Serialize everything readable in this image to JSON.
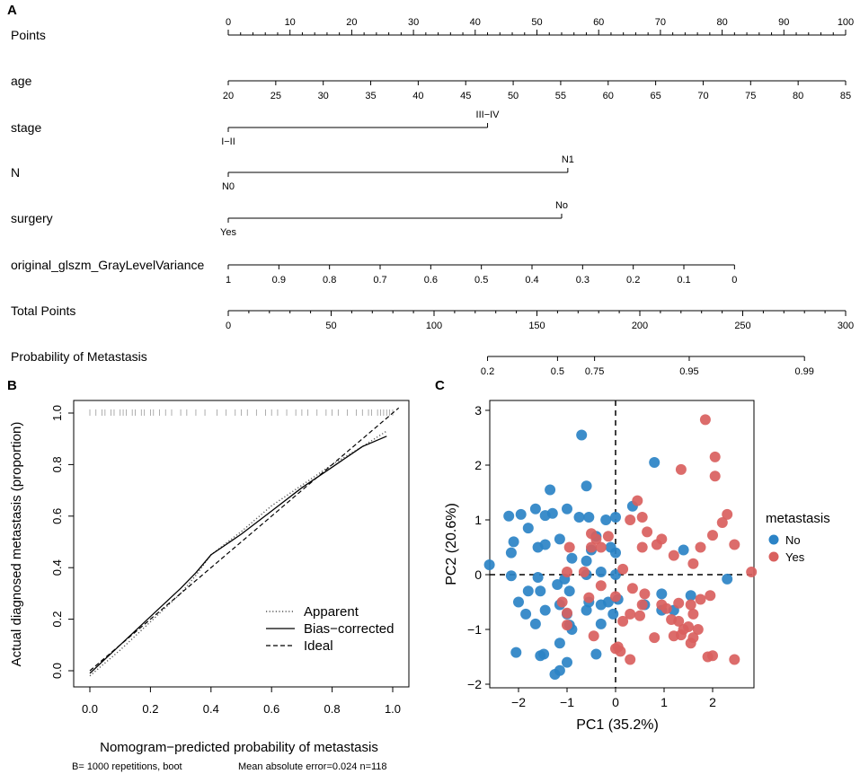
{
  "colors": {
    "no": "#2b83c6",
    "yes": "#d9605e",
    "ink": "#000000",
    "rug": "#9a9a9a"
  },
  "panel_a": {
    "label": "A",
    "rows": [
      {
        "name": "Points",
        "type": "points_scale",
        "ticks": [
          0,
          10,
          20,
          30,
          40,
          50,
          60,
          70,
          80,
          90,
          100
        ]
      },
      {
        "name": "age",
        "type": "continuous",
        "min": 20,
        "max": 85,
        "ticks": [
          20,
          25,
          30,
          35,
          40,
          45,
          50,
          55,
          60,
          65,
          70,
          75,
          80,
          85
        ],
        "points_at_min": 0,
        "points_at_max": 100
      },
      {
        "name": "stage",
        "type": "categorical",
        "levels": [
          {
            "label": "I−II",
            "points": 0
          },
          {
            "label": "III−IV",
            "points": 42
          }
        ]
      },
      {
        "name": "N",
        "type": "categorical",
        "levels": [
          {
            "label": "N0",
            "points": 0
          },
          {
            "label": "N1",
            "points": 55
          }
        ]
      },
      {
        "name": "surgery",
        "type": "categorical",
        "levels": [
          {
            "label": "Yes",
            "points": 0
          },
          {
            "label": "No",
            "points": 54
          }
        ]
      },
      {
        "name": "original_glszm_GrayLevelVariance",
        "type": "continuous",
        "ticks_labels": [
          "1",
          "0.9",
          "0.8",
          "0.7",
          "0.6",
          "0.5",
          "0.4",
          "0.3",
          "0.2",
          "0.1",
          "0"
        ],
        "points_at_first": 0,
        "points_at_last": 82
      },
      {
        "name": "Total Points",
        "type": "total_points",
        "ticks": [
          0,
          50,
          100,
          150,
          200,
          250,
          300
        ]
      },
      {
        "name": "Probability of Metastasis",
        "type": "probability",
        "ticks": [
          {
            "label": "0.2",
            "total": 126
          },
          {
            "label": "0.5",
            "total": 160
          },
          {
            "label": "0.75",
            "total": 178
          },
          {
            "label": "0.95",
            "total": 224
          },
          {
            "label": "0.99",
            "total": 280
          }
        ]
      }
    ]
  },
  "panel_b": {
    "label": "B",
    "chart_data": {
      "type": "line",
      "xlabel": "Nomogram−predicted probability of metastasis",
      "ylabel": "Actual diagnosed metastasis (proportion)",
      "xlim": [
        0,
        1
      ],
      "ylim": [
        0,
        1
      ],
      "xticks": [
        "0.0",
        "0.2",
        "0.4",
        "0.6",
        "0.8",
        "1.0"
      ],
      "yticks": [
        "0.0",
        "0.2",
        "0.4",
        "0.6",
        "0.8",
        "1.0"
      ],
      "series": [
        {
          "name": "Apparent",
          "style": "dotted",
          "x": [
            0.0,
            0.1,
            0.2,
            0.3,
            0.35,
            0.4,
            0.5,
            0.6,
            0.7,
            0.8,
            0.9,
            0.98
          ],
          "y": [
            -0.02,
            0.08,
            0.19,
            0.3,
            0.37,
            0.45,
            0.54,
            0.64,
            0.72,
            0.8,
            0.87,
            0.93
          ]
        },
        {
          "name": "Bias−corrected",
          "style": "solid",
          "x": [
            0.0,
            0.1,
            0.2,
            0.3,
            0.35,
            0.4,
            0.5,
            0.6,
            0.7,
            0.8,
            0.9,
            0.98
          ],
          "y": [
            -0.01,
            0.1,
            0.21,
            0.32,
            0.38,
            0.45,
            0.53,
            0.62,
            0.71,
            0.79,
            0.87,
            0.91
          ]
        },
        {
          "name": "Ideal",
          "style": "dashed",
          "x": [
            0.0,
            1.02
          ],
          "y": [
            0.0,
            1.02
          ]
        }
      ],
      "rug": [
        0.0,
        0.02,
        0.04,
        0.05,
        0.07,
        0.08,
        0.1,
        0.11,
        0.12,
        0.14,
        0.15,
        0.17,
        0.18,
        0.2,
        0.21,
        0.23,
        0.25,
        0.27,
        0.3,
        0.32,
        0.35,
        0.38,
        0.42,
        0.45,
        0.48,
        0.5,
        0.52,
        0.55,
        0.58,
        0.6,
        0.62,
        0.65,
        0.68,
        0.7,
        0.72,
        0.75,
        0.78,
        0.8,
        0.82,
        0.85,
        0.88,
        0.9,
        0.92,
        0.93,
        0.95,
        0.96,
        0.97,
        0.98,
        0.99,
        1.0
      ],
      "footnote_left": "B= 1000 repetitions, boot",
      "footnote_right": "Mean absolute error=0.024 n=118"
    }
  },
  "panel_c": {
    "label": "C",
    "chart_data": {
      "type": "scatter",
      "xlabel": "PC1 (35.2%)",
      "ylabel": "PC2 (20.6%)",
      "xlim": [
        -2.75,
        2.85
      ],
      "ylim": [
        -2.0,
        3.0
      ],
      "xticks": [
        -2,
        -1,
        0,
        1,
        2
      ],
      "yticks": [
        -2,
        -1,
        0,
        1,
        2,
        3
      ],
      "legend_title": "metastasis",
      "series": [
        {
          "name": "No",
          "points": [
            [
              -0.7,
              2.55
            ],
            [
              0.8,
              2.05
            ],
            [
              -0.6,
              1.62
            ],
            [
              -1.35,
              1.55
            ],
            [
              -2.2,
              1.07
            ],
            [
              -1.95,
              1.1
            ],
            [
              -1.8,
              0.85
            ],
            [
              -1.65,
              1.2
            ],
            [
              -1.45,
              1.08
            ],
            [
              -1.3,
              1.12
            ],
            [
              -1.0,
              1.2
            ],
            [
              -0.75,
              1.05
            ],
            [
              -0.55,
              1.05
            ],
            [
              -0.2,
              1.0
            ],
            [
              0.0,
              1.05
            ],
            [
              -2.1,
              0.6
            ],
            [
              -2.15,
              0.4
            ],
            [
              -1.6,
              0.5
            ],
            [
              -1.45,
              0.55
            ],
            [
              -1.15,
              0.65
            ],
            [
              -0.9,
              0.3
            ],
            [
              -0.4,
              0.7
            ],
            [
              -0.5,
              0.45
            ],
            [
              -0.1,
              0.5
            ],
            [
              0.0,
              0.4
            ],
            [
              -0.6,
              0.25
            ],
            [
              0.0,
              0.0
            ],
            [
              -2.6,
              0.18
            ],
            [
              -2.15,
              -0.02
            ],
            [
              -1.6,
              -0.05
            ],
            [
              -1.05,
              -0.08
            ],
            [
              -0.6,
              0.0
            ],
            [
              -0.3,
              0.05
            ],
            [
              0.35,
              1.25
            ],
            [
              1.4,
              0.45
            ],
            [
              1.55,
              -0.38
            ],
            [
              2.3,
              -0.08
            ],
            [
              -2.0,
              -0.5
            ],
            [
              -1.8,
              -0.3
            ],
            [
              -1.55,
              -0.3
            ],
            [
              -1.2,
              -0.18
            ],
            [
              -0.95,
              -0.3
            ],
            [
              -1.15,
              -0.55
            ],
            [
              -0.55,
              -0.5
            ],
            [
              -0.3,
              -0.55
            ],
            [
              -1.85,
              -0.72
            ],
            [
              -1.45,
              -0.65
            ],
            [
              -1.0,
              -0.72
            ],
            [
              -0.6,
              -0.65
            ],
            [
              -0.15,
              -0.5
            ],
            [
              -0.05,
              -0.72
            ],
            [
              0.05,
              -0.45
            ],
            [
              0.6,
              -0.55
            ],
            [
              0.95,
              -0.35
            ],
            [
              -0.3,
              -0.9
            ],
            [
              -0.9,
              -1.0
            ],
            [
              -1.15,
              -1.25
            ],
            [
              -2.05,
              -1.42
            ],
            [
              -1.55,
              -1.48
            ],
            [
              -1.48,
              -1.45
            ],
            [
              -1.0,
              -1.6
            ],
            [
              -1.15,
              -1.75
            ],
            [
              -1.25,
              -1.82
            ],
            [
              -0.4,
              -1.45
            ],
            [
              -0.95,
              -0.92
            ],
            [
              -1.65,
              -0.9
            ],
            [
              0.95,
              -0.65
            ],
            [
              1.2,
              -0.65
            ]
          ]
        },
        {
          "name": "Yes",
          "points": [
            [
              1.85,
              2.83
            ],
            [
              2.05,
              2.15
            ],
            [
              1.35,
              1.92
            ],
            [
              2.05,
              1.8
            ],
            [
              0.45,
              1.35
            ],
            [
              0.55,
              1.05
            ],
            [
              0.3,
              1.0
            ],
            [
              2.3,
              1.1
            ],
            [
              2.0,
              0.72
            ],
            [
              2.2,
              0.95
            ],
            [
              1.75,
              0.5
            ],
            [
              1.2,
              0.35
            ],
            [
              0.85,
              0.55
            ],
            [
              0.55,
              0.5
            ],
            [
              -0.5,
              0.75
            ],
            [
              -0.4,
              0.65
            ],
            [
              -0.15,
              0.7
            ],
            [
              -0.3,
              0.5
            ],
            [
              -0.5,
              0.5
            ],
            [
              -0.95,
              0.5
            ],
            [
              2.45,
              0.55
            ],
            [
              0.65,
              0.78
            ],
            [
              0.95,
              0.65
            ],
            [
              -1.0,
              0.05
            ],
            [
              -0.65,
              0.05
            ],
            [
              0.15,
              0.1
            ],
            [
              1.6,
              0.2
            ],
            [
              2.8,
              0.05
            ],
            [
              0.35,
              -0.25
            ],
            [
              0.6,
              -0.35
            ],
            [
              -0.3,
              -0.2
            ],
            [
              -0.55,
              -0.42
            ],
            [
              -1.1,
              -0.5
            ],
            [
              -1.0,
              -0.7
            ],
            [
              0.95,
              -0.55
            ],
            [
              1.05,
              -0.62
            ],
            [
              1.3,
              -0.52
            ],
            [
              1.55,
              -0.55
            ],
            [
              1.75,
              -0.45
            ],
            [
              1.95,
              -0.38
            ],
            [
              1.6,
              -0.72
            ],
            [
              0.5,
              -0.75
            ],
            [
              0.55,
              -0.55
            ],
            [
              0.0,
              -0.4
            ],
            [
              0.15,
              -0.85
            ],
            [
              0.3,
              -0.72
            ],
            [
              1.15,
              -0.82
            ],
            [
              1.3,
              -0.85
            ],
            [
              1.5,
              -0.95
            ],
            [
              1.4,
              -1.0
            ],
            [
              1.35,
              -1.1
            ],
            [
              1.2,
              -1.12
            ],
            [
              1.7,
              -1.0
            ],
            [
              1.6,
              -1.15
            ],
            [
              1.55,
              -1.25
            ],
            [
              0.0,
              -1.35
            ],
            [
              0.05,
              -1.32
            ],
            [
              0.3,
              -1.55
            ],
            [
              1.9,
              -1.5
            ],
            [
              2.0,
              -1.48
            ],
            [
              2.45,
              -1.55
            ],
            [
              -1.0,
              -0.92
            ],
            [
              -0.45,
              -1.12
            ],
            [
              0.1,
              -1.4
            ],
            [
              0.8,
              -1.15
            ]
          ]
        }
      ]
    }
  }
}
